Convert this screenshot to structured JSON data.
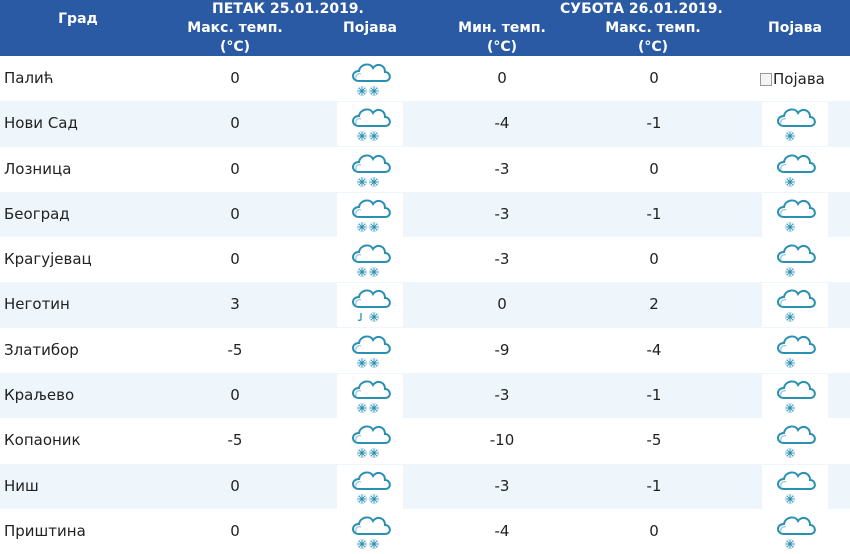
{
  "header": {
    "city_label": "Град",
    "friday": {
      "label": "ПЕТАК  25.01.2019.",
      "max_label_line1": "Макс. темп.",
      "max_label_line2": "(°C)",
      "phenomenon_label": "Појава"
    },
    "saturday": {
      "label": "СУБОТА  26.01.2019.",
      "min_label_line1": "Мин. темп.",
      "min_label_line2": "(°C)",
      "max_label_line1": "Макс. темп.",
      "max_label_line2": "(°C)",
      "phenomenon_label": "Појава"
    }
  },
  "rows": [
    {
      "city": "Палић",
      "fri_max": "0",
      "fri_icon": "cloud-snow-icon",
      "sat_min": "0",
      "sat_max": "0",
      "sat_icon": "broken-image",
      "sat_icon_alt": "Појава"
    },
    {
      "city": "Нови Сад",
      "fri_max": "0",
      "fri_icon": "cloud-snow-icon",
      "sat_min": "-4",
      "sat_max": "-1",
      "sat_icon": "cloud-light-snow-icon"
    },
    {
      "city": "Лозница",
      "fri_max": "0",
      "fri_icon": "cloud-snow-icon",
      "sat_min": "-3",
      "sat_max": "0",
      "sat_icon": "cloud-light-snow-icon"
    },
    {
      "city": "Београд",
      "fri_max": "0",
      "fri_icon": "cloud-snow-icon",
      "sat_min": "-3",
      "sat_max": "-1",
      "sat_icon": "cloud-light-snow-icon"
    },
    {
      "city": "Крагујевац",
      "fri_max": "0",
      "fri_icon": "cloud-snow-icon",
      "sat_min": "-3",
      "sat_max": "0",
      "sat_icon": "cloud-light-snow-icon"
    },
    {
      "city": "Неготин",
      "fri_max": "3",
      "fri_icon": "cloud-sleet-icon",
      "sat_min": "0",
      "sat_max": "2",
      "sat_icon": "cloud-light-snow-icon"
    },
    {
      "city": "Златибор",
      "fri_max": "-5",
      "fri_icon": "cloud-snow-icon",
      "sat_min": "-9",
      "sat_max": "-4",
      "sat_icon": "cloud-light-snow-icon"
    },
    {
      "city": "Краљево",
      "fri_max": "0",
      "fri_icon": "cloud-snow-icon",
      "sat_min": "-3",
      "sat_max": "-1",
      "sat_icon": "cloud-light-snow-icon"
    },
    {
      "city": "Копаоник",
      "fri_max": "-5",
      "fri_icon": "cloud-snow-icon",
      "sat_min": "-10",
      "sat_max": "-5",
      "sat_icon": "cloud-light-snow-icon"
    },
    {
      "city": "Ниш",
      "fri_max": "0",
      "fri_icon": "cloud-snow-icon",
      "sat_min": "-3",
      "sat_max": "-1",
      "sat_icon": "cloud-light-snow-icon"
    },
    {
      "city": "Приштина",
      "fri_max": "0",
      "fri_icon": "cloud-snow-icon",
      "sat_min": "-4",
      "sat_max": "0",
      "sat_icon": "cloud-light-snow-icon"
    }
  ],
  "colors": {
    "header_bg": "#2a5aa3",
    "row_alt_bg": "#eef5fb",
    "cloud": "#2a8fb0"
  }
}
